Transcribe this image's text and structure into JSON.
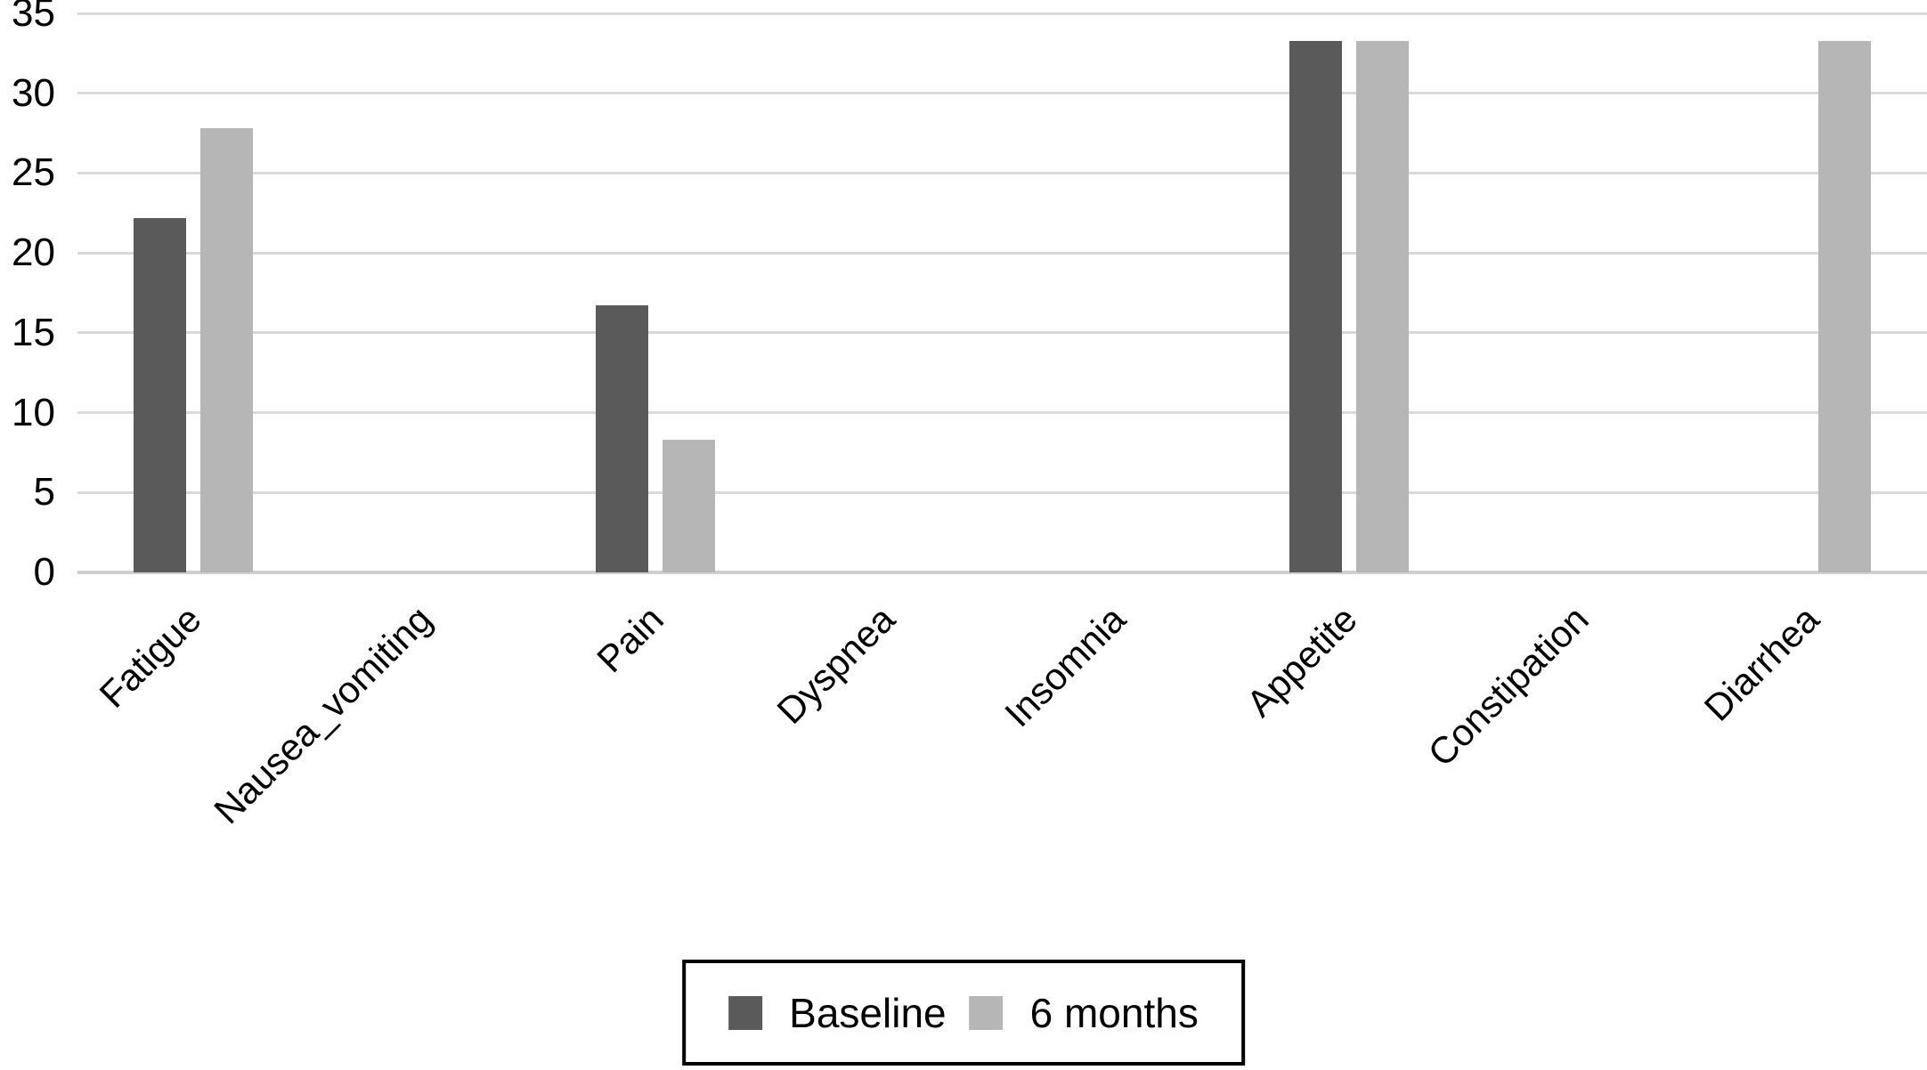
{
  "chart_data": {
    "type": "bar",
    "title": "",
    "xlabel": "",
    "ylabel": "",
    "categories": [
      "Fatigue",
      "Nausea_vomiting",
      "Pain",
      "Dyspnea",
      "Insomnia",
      "Appetite",
      "Constipation",
      "Diarrhea"
    ],
    "series": [
      {
        "name": "Baseline",
        "color": "#5a5a5a",
        "values": [
          22.2,
          0,
          16.7,
          0,
          0,
          33.3,
          0,
          0
        ]
      },
      {
        "name": "6 months",
        "color": "#b6b6b6",
        "values": [
          27.8,
          0,
          8.3,
          0,
          0,
          33.3,
          0,
          33.3
        ]
      }
    ],
    "ylim": [
      0,
      35
    ],
    "yticks": [
      0,
      5,
      10,
      15,
      20,
      25,
      30,
      35
    ],
    "grid": true,
    "legend_position": "bottom-center",
    "colors": {
      "gridline": "#d9d9d9",
      "baseline_axis": "#cfcfcf",
      "text": "#000000",
      "legend_border": "#000000",
      "background": "#ffffff"
    }
  }
}
